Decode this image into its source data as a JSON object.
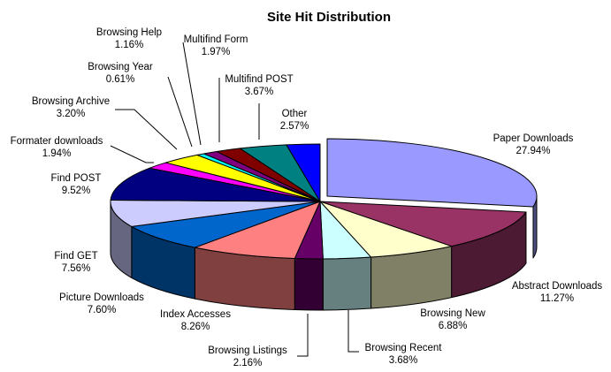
{
  "chart_data": {
    "type": "pie",
    "style": "3d-exploded",
    "title": "Site Hit Distribution",
    "legend": "none",
    "slices": [
      {
        "label": "Paper Downloads",
        "value": "27.94%",
        "percent": 27.94,
        "color": "#9999FF"
      },
      {
        "label": "Abstract Downloads",
        "value": "11.27%",
        "percent": 11.27,
        "color": "#993366"
      },
      {
        "label": "Browsing New",
        "value": "6.88%",
        "percent": 6.88,
        "color": "#FFFFCC"
      },
      {
        "label": "Browsing Recent",
        "value": "3.68%",
        "percent": 3.68,
        "color": "#CCFFFF"
      },
      {
        "label": "Browsing Listings",
        "value": "2.16%",
        "percent": 2.16,
        "color": "#660066"
      },
      {
        "label": "Index Accesses",
        "value": "8.26%",
        "percent": 8.26,
        "color": "#FF8080"
      },
      {
        "label": "Picture Downloads",
        "value": "7.60%",
        "percent": 7.6,
        "color": "#0066CC"
      },
      {
        "label": "Find GET",
        "value": "7.56%",
        "percent": 7.56,
        "color": "#CCCCFF"
      },
      {
        "label": "Find POST",
        "value": "9.52%",
        "percent": 9.52,
        "color": "#000080"
      },
      {
        "label": "Formater downloads",
        "value": "1.94%",
        "percent": 1.94,
        "color": "#FF00FF"
      },
      {
        "label": "Browsing Archive",
        "value": "3.20%",
        "percent": 3.2,
        "color": "#FFFF00"
      },
      {
        "label": "Browsing Year",
        "value": "0.61%",
        "percent": 0.61,
        "color": "#00FFFF"
      },
      {
        "label": "Browsing Help",
        "value": "1.16%",
        "percent": 1.16,
        "color": "#800080"
      },
      {
        "label": "Multifind Form",
        "value": "1.97%",
        "percent": 1.97,
        "color": "#800000"
      },
      {
        "label": "Multifind POST",
        "value": "3.67%",
        "percent": 3.67,
        "color": "#008080"
      },
      {
        "label": "Other",
        "value": "2.57%",
        "percent": 2.57,
        "color": "#0000FF"
      }
    ]
  }
}
